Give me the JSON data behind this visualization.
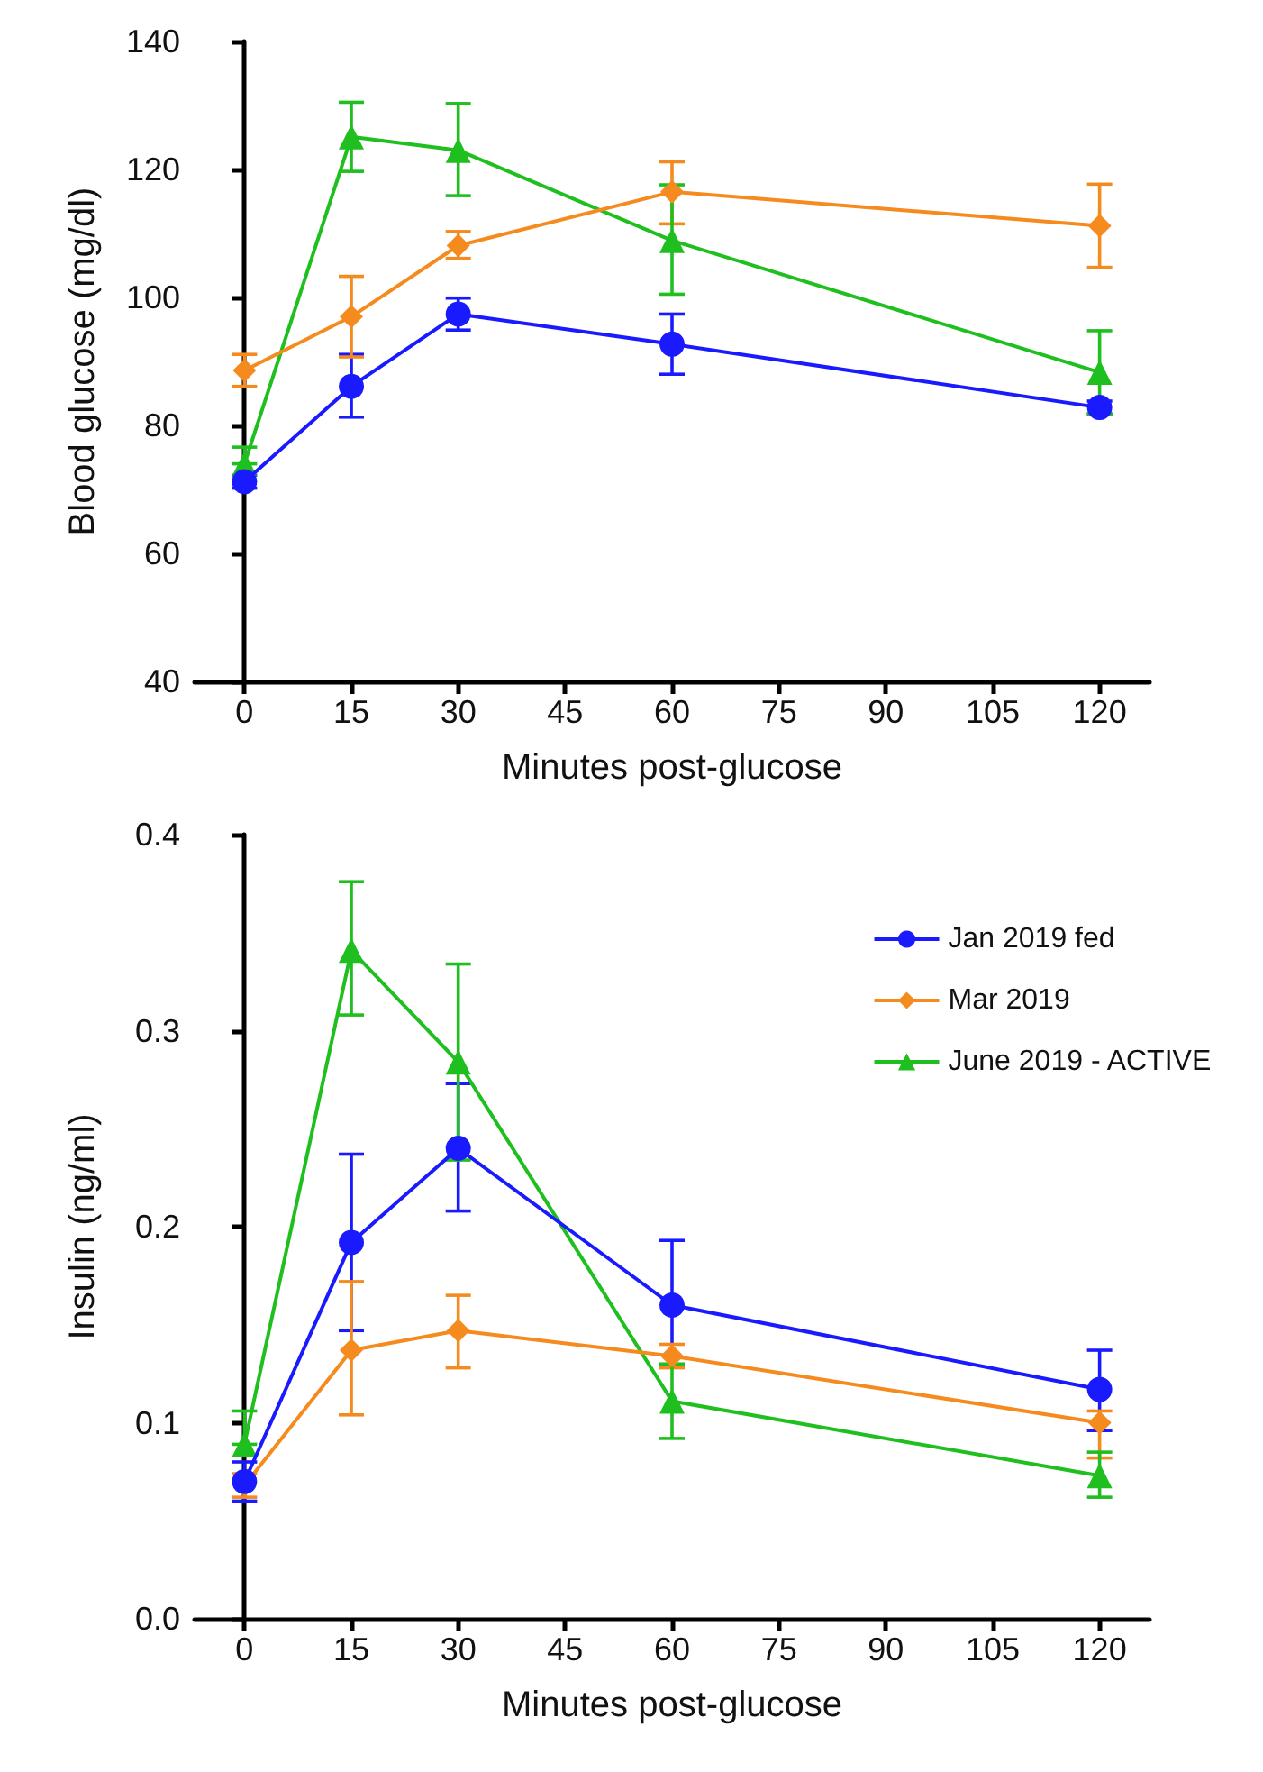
{
  "chart_data": [
    {
      "type": "line",
      "xlabel": "Minutes post-glucose",
      "ylabel": "Blood glucose (mg/dl)",
      "x": [
        0,
        15,
        30,
        60,
        120
      ],
      "xlim": [
        -7,
        127
      ],
      "xticks": [
        0,
        15,
        30,
        45,
        60,
        75,
        90,
        105,
        120
      ],
      "ylim": [
        40,
        140
      ],
      "yticks": [
        40,
        60,
        80,
        100,
        120,
        140
      ],
      "grid": false,
      "legend": false,
      "line_style": "solid",
      "series": [
        {
          "color": "#1a1aff",
          "marker": "circle",
          "values": [
            71.2,
            86.1,
            97.4,
            92.7,
            82.8
          ],
          "errors": [
            [
              70.2,
              72.2
            ],
            [
              81.3,
              91.1
            ],
            [
              94.9,
              99.9
            ],
            [
              88.0,
              97.4
            ],
            [
              81.8,
              83.8
            ]
          ]
        },
        {
          "color": "#f58b1f",
          "marker": "diamond",
          "values": [
            88.6,
            97.0,
            108.1,
            116.5,
            111.2
          ],
          "errors": [
            [
              86.1,
              91.1
            ],
            [
              90.7,
              103.3
            ],
            [
              106.1,
              110.3
            ],
            [
              111.5,
              121.2
            ],
            [
              104.7,
              117.7
            ]
          ]
        },
        {
          "color": "#1fbf1f",
          "marker": "triangle",
          "values": [
            74.0,
            125.1,
            123.0,
            108.9,
            88.3
          ],
          "errors": [
            [
              74.0,
              76.6
            ],
            [
              119.7,
              130.5
            ],
            [
              115.9,
              130.3
            ],
            [
              100.5,
              117.6
            ],
            [
              81.8,
              94.8
            ]
          ]
        }
      ]
    },
    {
      "type": "line",
      "xlabel": "Minutes post-glucose",
      "ylabel": "Insulin (ng/ml)",
      "x": [
        0,
        15,
        30,
        60,
        120
      ],
      "xlim": [
        -7,
        127
      ],
      "xticks": [
        0,
        15,
        30,
        45,
        60,
        75,
        90,
        105,
        120
      ],
      "ylim": [
        0,
        0.4
      ],
      "yticks": [
        {
          "value": 0,
          "label": "0.0"
        },
        0.1,
        0.2,
        0.3,
        0.4
      ],
      "grid": false,
      "legend": "top right",
      "line_style": "solid",
      "series": [
        {
          "name": "Jan 2019 fed",
          "color": "#1a1aff",
          "marker": "circle",
          "values": [
            0.07,
            0.192,
            0.24,
            0.16,
            0.117
          ],
          "errors": [
            [
              0.06,
              0.08
            ],
            [
              0.147,
              0.237
            ],
            [
              0.208,
              0.273
            ],
            [
              0.129,
              0.193
            ],
            [
              0.096,
              0.137
            ]
          ]
        },
        {
          "name": "Mar 2019",
          "color": "#f58b1f",
          "marker": "diamond",
          "values": [
            0.068,
            0.137,
            0.147,
            0.134,
            0.1
          ],
          "errors": [
            [
              0.062,
              0.074
            ],
            [
              0.104,
              0.172
            ],
            [
              0.128,
              0.165
            ],
            [
              0.128,
              0.14
            ],
            [
              0.082,
              0.106
            ]
          ]
        },
        {
          "name": "June 2019 - ACTIVE",
          "color": "#1fbf1f",
          "marker": "triangle",
          "values": [
            0.089,
            0.341,
            0.284,
            0.111,
            0.073
          ],
          "errors": [
            [
              0.089,
              0.106
            ],
            [
              0.308,
              0.376
            ],
            [
              0.234,
              0.334
            ],
            [
              0.092,
              0.13
            ],
            [
              0.062,
              0.085
            ]
          ]
        }
      ]
    }
  ]
}
